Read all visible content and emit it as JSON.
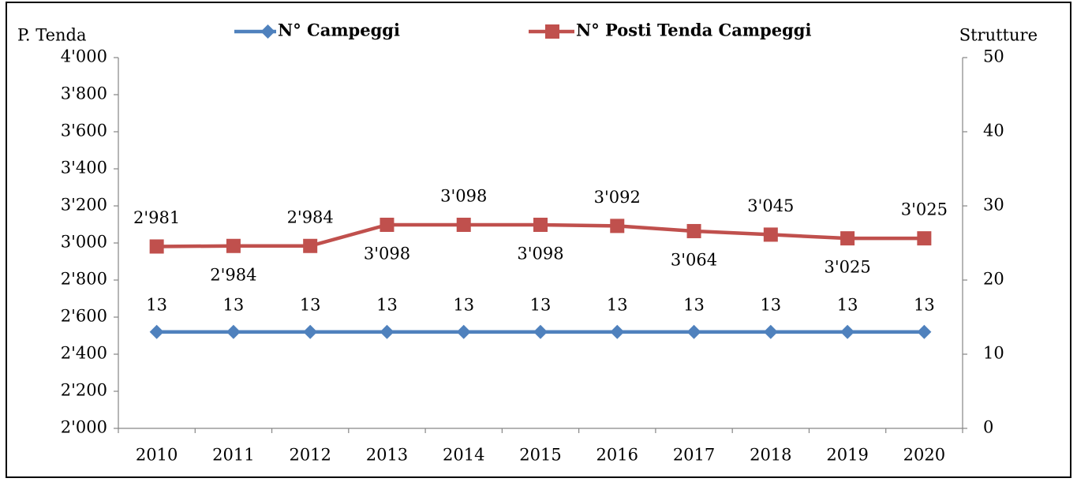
{
  "chart_data": {
    "type": "line",
    "ylabel": "P. Tenda",
    "y2label": "Strutture",
    "categories": [
      "2010",
      "2011",
      "2012",
      "2013",
      "2014",
      "2015",
      "2016",
      "2017",
      "2018",
      "2019",
      "2020"
    ],
    "series": [
      {
        "name": "N° Campeggi",
        "color": "#4f81bd",
        "marker": "diamond",
        "axis": "y2",
        "values": [
          13,
          13,
          13,
          13,
          13,
          13,
          13,
          13,
          13,
          13,
          13
        ]
      },
      {
        "name": "N° Posti Tenda Campeggi",
        "color": "#c0504d",
        "marker": "square",
        "values": [
          2981,
          2984,
          2984,
          3098,
          3098,
          3098,
          3092,
          3064,
          3045,
          3025,
          3025
        ],
        "value_labels": [
          "2'981",
          "2'984",
          "2'984",
          "3'098",
          "3'098",
          "3'098",
          "3'092",
          "3'064",
          "3'045",
          "3'025",
          "3'025"
        ]
      }
    ],
    "ylim": [
      2000,
      4000
    ],
    "yticks": [
      {
        "value": 2000,
        "label": "2'000"
      },
      {
        "value": 2200,
        "label": "2'200"
      },
      {
        "value": 2400,
        "label": "2'400"
      },
      {
        "value": 2600,
        "label": "2'600"
      },
      {
        "value": 2800,
        "label": "2'800"
      },
      {
        "value": 3000,
        "label": "3'000"
      },
      {
        "value": 3200,
        "label": "3'200"
      },
      {
        "value": 3400,
        "label": "3'400"
      },
      {
        "value": 3600,
        "label": "3'600"
      },
      {
        "value": 3800,
        "label": "3'800"
      },
      {
        "value": 4000,
        "label": "4'000"
      }
    ],
    "y2lim": [
      0,
      50
    ],
    "y2ticks": [
      0,
      10,
      20,
      30,
      40,
      50
    ],
    "legend": "top",
    "grid": false
  }
}
